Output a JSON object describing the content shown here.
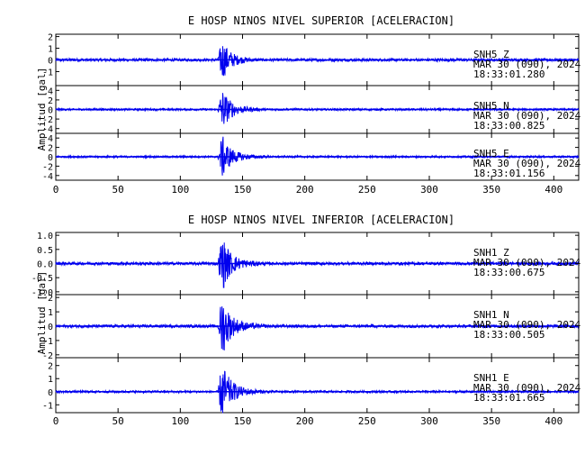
{
  "colors": {
    "trace": "#0000ee",
    "frame": "#000000"
  },
  "chart_data": [
    {
      "type": "line",
      "title": "E HOSP NINOS NIVEL SUPERIOR [ACELERACION]",
      "ylabel": "Amplitud [gal]",
      "xlim": [
        0,
        420
      ],
      "x_ticks": [
        0,
        50,
        100,
        150,
        200,
        250,
        300,
        350,
        400
      ],
      "event_onset_s": 130,
      "peak_time_s": 133,
      "panels": [
        {
          "station": "SNH5",
          "component": "Z",
          "date": "MAR 30 (090), 2024",
          "time": "18:33:01.280",
          "ylim": [
            -2.2,
            2.2
          ],
          "y_ticks": [
            -1,
            0,
            1,
            2
          ],
          "y_tick_labels": [
            "-1",
            "0",
            "1",
            "2"
          ],
          "noise_amplitude": 0.12,
          "peak_amplitude": 1.6
        },
        {
          "station": "SNH5",
          "component": "N",
          "date": "MAR 30 (090), 2024",
          "time": "18:33:00.825",
          "ylim": [
            -5,
            5
          ],
          "y_ticks": [
            -4,
            -2,
            0,
            2,
            4
          ],
          "y_tick_labels": [
            "-4",
            "-2",
            "0",
            "2",
            "4"
          ],
          "noise_amplitude": 0.2,
          "peak_amplitude": 4.0
        },
        {
          "station": "SNH5",
          "component": "E",
          "date": "MAR 30 (090), 2024",
          "time": "18:33:01.156",
          "ylim": [
            -5,
            5
          ],
          "y_ticks": [
            -4,
            -2,
            0,
            2,
            4
          ],
          "y_tick_labels": [
            "-4",
            "-2",
            "0",
            "2",
            "4"
          ],
          "noise_amplitude": 0.2,
          "peak_amplitude": 4.2
        }
      ]
    },
    {
      "type": "line",
      "title": "E HOSP NINOS NIVEL INFERIOR [ACELERACION]",
      "ylabel": "Amplitud [gal]",
      "xlim": [
        0,
        420
      ],
      "x_ticks": [
        0,
        50,
        100,
        150,
        200,
        250,
        300,
        350,
        400
      ],
      "event_onset_s": 130,
      "peak_time_s": 133,
      "panels": [
        {
          "station": "SNH1",
          "component": "Z",
          "date": "MAR 30 (090), 2024",
          "time": "18:33:00.675",
          "ylim": [
            -1.1,
            1.1
          ],
          "y_ticks": [
            -1.0,
            -0.5,
            0,
            0.5,
            1.0
          ],
          "y_tick_labels": [
            "-1.0",
            "-0.5",
            "0.0",
            "0.5",
            "1.0"
          ],
          "noise_amplitude": 0.05,
          "peak_amplitude": 0.9
        },
        {
          "station": "SNH1",
          "component": "N",
          "date": "MAR 30 (090), 2024",
          "time": "18:33:00.505",
          "ylim": [
            -2.2,
            2.2
          ],
          "y_ticks": [
            -2,
            -1,
            0,
            1,
            2
          ],
          "y_tick_labels": [
            "-2",
            "-1",
            "0",
            "1",
            "2"
          ],
          "noise_amplitude": 0.1,
          "peak_amplitude": 1.9
        },
        {
          "station": "SNH1",
          "component": "E",
          "date": "MAR 30 (090), 2024",
          "time": "18:33:01.665",
          "ylim": [
            -1.6,
            2.6
          ],
          "y_ticks": [
            -1,
            0,
            1,
            2
          ],
          "y_tick_labels": [
            "-1",
            "0",
            "1",
            "2"
          ],
          "noise_amplitude": 0.08,
          "peak_amplitude": 2.0
        }
      ]
    }
  ]
}
